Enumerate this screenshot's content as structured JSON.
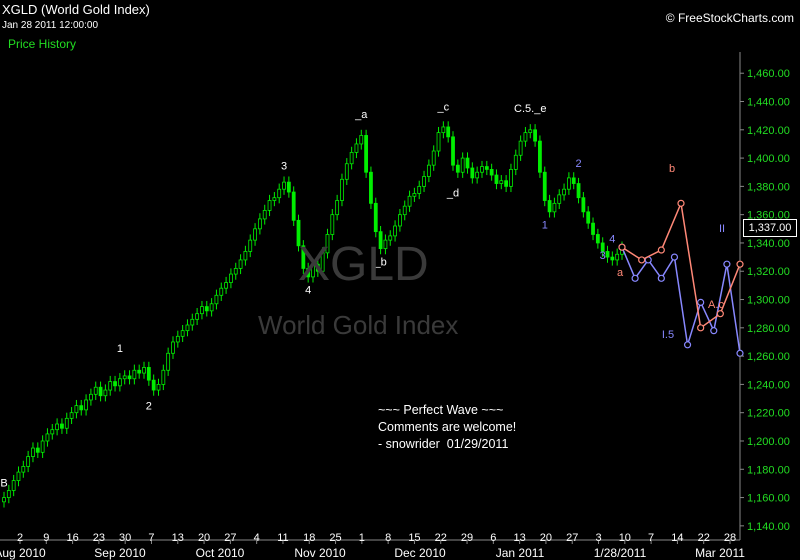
{
  "header": {
    "title": "XGLD (World Gold Index)",
    "timestamp": "Jan 28 2011 12:00:00",
    "price_history_label": "Price History",
    "copyright": "© FreeStockCharts.com"
  },
  "watermark": {
    "symbol": "XGLD",
    "name": "World Gold Index"
  },
  "annotation_note": "~~~ Perfect Wave ~~~\nComments are welcome!\n- snowrider  01/29/2011",
  "last_price_label": "1,337.00",
  "colors": {
    "background": "#000000",
    "candle": "#00ee00",
    "axis_text": "#22dd22",
    "wave_blue": "#8888ff",
    "wave_salmon": "#ff8877"
  },
  "chart_data": {
    "type": "candlestick",
    "title": "XGLD (World Gold Index)",
    "y_range": [
      1130,
      1475
    ],
    "y_ticks": [
      "1,140.00",
      "1,160.00",
      "1,180.00",
      "1,200.00",
      "1,220.00",
      "1,240.00",
      "1,260.00",
      "1,280.00",
      "1,300.00",
      "1,320.00",
      "1,340.00",
      "1,360.00",
      "1,380.00",
      "1,400.00",
      "1,420.00",
      "1,440.00",
      "1,460.00"
    ],
    "x_day_ticks": [
      "2",
      "9",
      "16",
      "23",
      "30",
      "7",
      "13",
      "20",
      "27",
      "4",
      "11",
      "18",
      "25",
      "1",
      "8",
      "15",
      "22",
      "29",
      "6",
      "13",
      "20",
      "27",
      "3",
      "10",
      "7",
      "14",
      "22",
      "28"
    ],
    "x_month_ticks": [
      "Aug 2010",
      "Sep 2010",
      "Oct 2010",
      "Nov 2010",
      "Dec 2010",
      "Jan 2011",
      "1/28/2011",
      "Mar 2011"
    ],
    "closes": [
      1160,
      1165,
      1172,
      1178,
      1182,
      1189,
      1195,
      1192,
      1200,
      1205,
      1208,
      1212,
      1209,
      1216,
      1220,
      1225,
      1222,
      1229,
      1233,
      1238,
      1232,
      1236,
      1242,
      1239,
      1244,
      1246,
      1244,
      1250,
      1248,
      1252,
      1243,
      1236,
      1240,
      1250,
      1262,
      1270,
      1274,
      1278,
      1282,
      1286,
      1290,
      1295,
      1292,
      1297,
      1303,
      1308,
      1312,
      1318,
      1322,
      1328,
      1334,
      1342,
      1350,
      1357,
      1363,
      1370,
      1372,
      1378,
      1383,
      1376,
      1356,
      1338,
      1322,
      1316,
      1325,
      1320,
      1333,
      1346,
      1360,
      1370,
      1385,
      1396,
      1404,
      1410,
      1416,
      1390,
      1368,
      1348,
      1336,
      1342,
      1345,
      1352,
      1360,
      1366,
      1373,
      1375,
      1380,
      1387,
      1395,
      1405,
      1418,
      1422,
      1415,
      1395,
      1390,
      1400,
      1393,
      1386,
      1390,
      1394,
      1392,
      1388,
      1382,
      1384,
      1380,
      1392,
      1402,
      1412,
      1418,
      1420,
      1412,
      1390,
      1370,
      1362,
      1368,
      1374,
      1378,
      1386,
      1382,
      1372,
      1362,
      1354,
      1346,
      1340,
      1334,
      1330,
      1328,
      1332,
      1337
    ],
    "wave_labels": [
      {
        "text": "B",
        "color": "white"
      },
      {
        "text": "1",
        "color": "white"
      },
      {
        "text": "2",
        "color": "white"
      },
      {
        "text": "3",
        "color": "white"
      },
      {
        "text": "4",
        "color": "white"
      },
      {
        "text": "_a",
        "color": "white"
      },
      {
        "text": "_b",
        "color": "white"
      },
      {
        "text": "_c",
        "color": "white"
      },
      {
        "text": "_d",
        "color": "white"
      },
      {
        "text": "C.5._e",
        "color": "white"
      },
      {
        "text": "1",
        "color": "blue"
      },
      {
        "text": "2",
        "color": "blue"
      },
      {
        "text": "3",
        "color": "blue"
      },
      {
        "text": "4",
        "color": "blue"
      },
      {
        "text": "I.5",
        "color": "blue"
      },
      {
        "text": "II",
        "color": "blue"
      },
      {
        "text": "a",
        "color": "salmon"
      },
      {
        "text": "b",
        "color": "salmon"
      },
      {
        "text": "A.c",
        "color": "salmon"
      }
    ],
    "projection_blue": [
      1337,
      1315,
      1328,
      1315,
      1330,
      1268,
      1298,
      1278,
      1325,
      1262
    ],
    "projection_salmon": [
      1337,
      1328,
      1335,
      1368,
      1280,
      1290,
      1325
    ]
  }
}
